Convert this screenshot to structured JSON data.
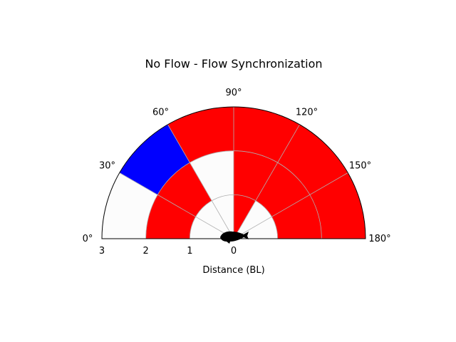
{
  "chart_data": {
    "type": "polar-heatmap",
    "title": "No Flow - Flow Synchronization",
    "xlabel": "Distance (BL)",
    "theta_range_deg": [
      0,
      180
    ],
    "r_range": [
      0,
      3
    ],
    "angle_ticks": [
      "0°",
      "30°",
      "60°",
      "90°",
      "120°",
      "150°",
      "180°"
    ],
    "radius_ticks": [
      "3",
      "2",
      "1",
      "0"
    ],
    "radial_bin_edges": [
      0,
      1,
      2,
      3
    ],
    "angular_bin_edges_deg": [
      0,
      30,
      60,
      90,
      120,
      150,
      180
    ],
    "colors": {
      "red": "#ff0000",
      "blue": "#0000ff",
      "empty": "#fcfcfc"
    },
    "cells": [
      [
        "empty",
        "empty",
        "empty",
        "red",
        "empty",
        "empty"
      ],
      [
        "red",
        "red",
        "empty",
        "red",
        "red",
        "red"
      ],
      [
        "empty",
        "blue",
        "red",
        "red",
        "red",
        "red"
      ]
    ],
    "grid": true
  }
}
